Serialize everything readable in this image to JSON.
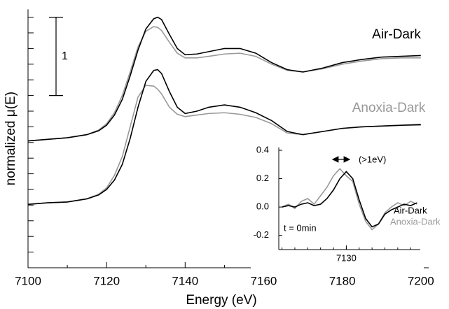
{
  "chart_data": [
    {
      "type": "line",
      "x_label": "Energy (eV)",
      "y_label": "normalized μ(E)",
      "xlim": [
        7100,
        7202
      ],
      "xticks": [
        7100,
        7120,
        7140,
        7160,
        7180,
        7200
      ],
      "ylim": [
        0,
        3.3
      ],
      "yticks": [
        0.2,
        0.4,
        0.6,
        0.8,
        1.0,
        1.2,
        1.4,
        1.6,
        1.8,
        2.0,
        2.2,
        2.4,
        2.6,
        2.8,
        3.0,
        3.2
      ],
      "scale_bar": {
        "start": 2.2,
        "value": 1
      },
      "labels": [
        {
          "text": "Air-Dark",
          "color": "#000000"
        },
        {
          "text": "Anoxia-Dark",
          "color": "#999999"
        }
      ],
      "x": [
        7100,
        7105,
        7110,
        7115,
        7118,
        7120,
        7122,
        7124,
        7126,
        7128,
        7130,
        7132,
        7133,
        7134,
        7136,
        7138,
        7140,
        7143,
        7146,
        7150,
        7154,
        7158,
        7162,
        7166,
        7170,
        7175,
        7180,
        7185,
        7190,
        7195,
        7200
      ],
      "series": [
        {
          "color": "#999999",
          "values": [
            1.62,
            1.64,
            1.66,
            1.7,
            1.76,
            1.84,
            1.98,
            2.2,
            2.5,
            2.82,
            3.02,
            3.08,
            3.07,
            3.03,
            2.88,
            2.74,
            2.68,
            2.68,
            2.7,
            2.73,
            2.74,
            2.7,
            2.6,
            2.52,
            2.5,
            2.54,
            2.6,
            2.64,
            2.67,
            2.68,
            2.68
          ]
        },
        {
          "color": "#000000",
          "values": [
            1.62,
            1.64,
            1.66,
            1.7,
            1.75,
            1.82,
            1.95,
            2.15,
            2.45,
            2.78,
            3.05,
            3.18,
            3.2,
            3.17,
            2.98,
            2.8,
            2.72,
            2.73,
            2.76,
            2.8,
            2.8,
            2.74,
            2.62,
            2.53,
            2.5,
            2.55,
            2.62,
            2.66,
            2.69,
            2.7,
            2.71
          ]
        },
        {
          "color": "#999999",
          "values": [
            0.81,
            0.83,
            0.84,
            0.88,
            0.94,
            1.02,
            1.18,
            1.42,
            1.8,
            2.18,
            2.33,
            2.32,
            2.28,
            2.22,
            2.05,
            1.96,
            1.93,
            1.95,
            1.97,
            1.98,
            1.96,
            1.92,
            1.84,
            1.72,
            1.7,
            1.74,
            1.78,
            1.8,
            1.81,
            1.82,
            1.82
          ]
        },
        {
          "color": "#000000",
          "values": [
            0.81,
            0.83,
            0.84,
            0.88,
            0.93,
            1.0,
            1.12,
            1.32,
            1.65,
            2.05,
            2.38,
            2.52,
            2.53,
            2.48,
            2.25,
            2.05,
            1.97,
            2.0,
            2.05,
            2.08,
            2.05,
            1.98,
            1.88,
            1.74,
            1.7,
            1.74,
            1.78,
            1.8,
            1.81,
            1.82,
            1.83
          ]
        }
      ]
    },
    {
      "type": "line",
      "xlim": [
        7119.5,
        7141.5
      ],
      "xticks": [
        7130
      ],
      "ylim": [
        -0.3,
        0.42
      ],
      "yticks": [
        -0.2,
        {
          "value": 0,
          "label": "0.0"
        },
        0.2,
        0.4
      ],
      "annotation": "(>1eV)",
      "time_label": "t = 0min",
      "labels": [
        {
          "text": "Air-Dark",
          "color": "#000000"
        },
        {
          "text": "Anoxia-Dark",
          "color": "#999999"
        }
      ],
      "x": [
        7120,
        7121,
        7122,
        7123,
        7124,
        7125,
        7126,
        7127,
        7128,
        7129,
        7130,
        7131,
        7132,
        7133,
        7134,
        7135,
        7136,
        7137,
        7138,
        7139,
        7140,
        7141
      ],
      "series": [
        {
          "color": "#999999",
          "values": [
            0.0,
            0.02,
            -0.01,
            0.04,
            0.06,
            0.02,
            0.08,
            0.14,
            0.22,
            0.27,
            0.22,
            0.18,
            0.02,
            -0.1,
            -0.16,
            -0.12,
            -0.04,
            0.0,
            0.03,
            0.01,
            0.04,
            0.02
          ]
        },
        {
          "color": "#000000",
          "values": [
            0.0,
            0.01,
            0.0,
            0.02,
            0.03,
            0.01,
            0.02,
            0.06,
            0.12,
            0.2,
            0.25,
            0.2,
            0.05,
            -0.08,
            -0.14,
            -0.12,
            -0.05,
            -0.02,
            0.0,
            0.02,
            0.01,
            0.03
          ]
        }
      ]
    }
  ]
}
